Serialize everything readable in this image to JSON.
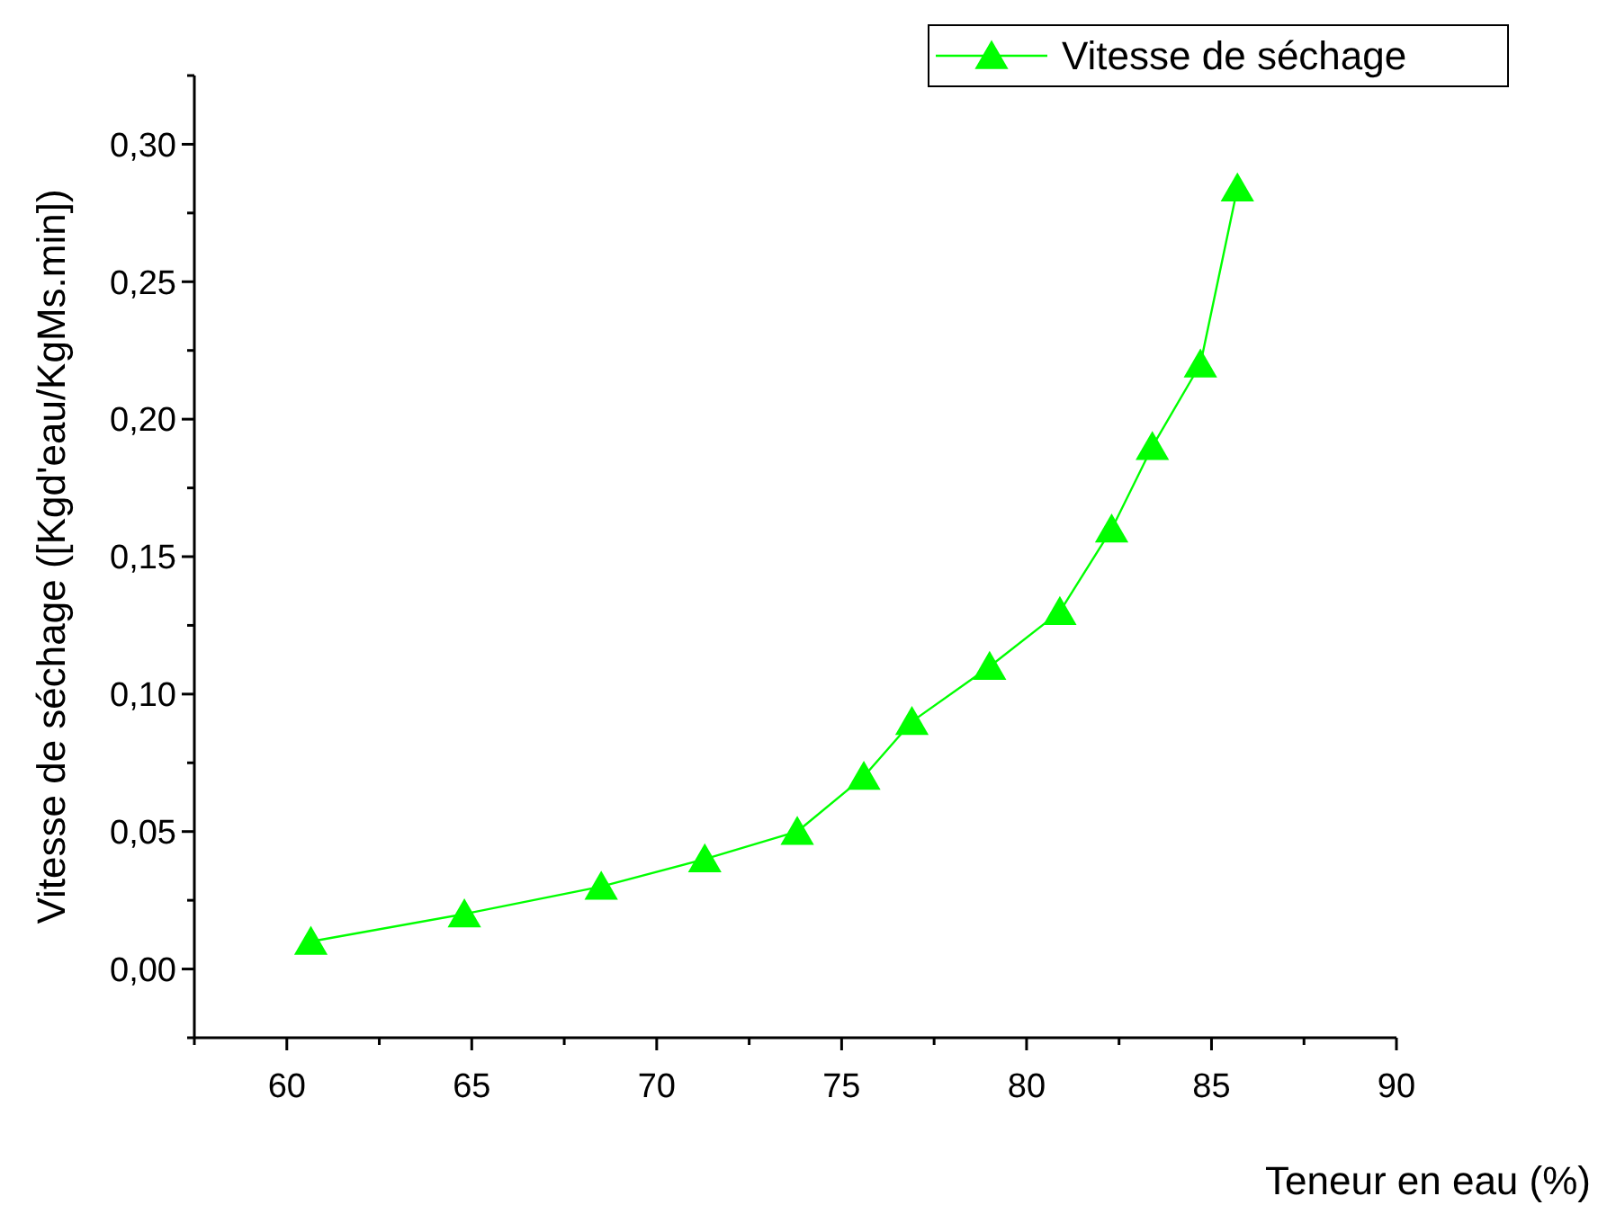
{
  "chart_data": {
    "type": "line",
    "xlabel": "Teneur en eau (%)",
    "ylabel": "Vitesse de séchage ([Kgd'eau/KgMs.min])",
    "x": [
      60.65,
      64.8,
      68.5,
      71.3,
      73.8,
      75.6,
      76.9,
      79.0,
      80.9,
      82.3,
      83.4,
      84.7,
      85.7
    ],
    "series": [
      {
        "name": "Vitesse de séchage",
        "color": "#00ff00",
        "values": [
          0.01,
          0.02,
          0.03,
          0.04,
          0.05,
          0.07,
          0.09,
          0.11,
          0.13,
          0.16,
          0.19,
          0.22,
          0.284
        ]
      }
    ],
    "xlim": [
      57.5,
      90
    ],
    "xticks": [
      {
        "value": 57.5,
        "label": null
      },
      60,
      {
        "value": 62.5,
        "label": null
      },
      65,
      {
        "value": 67.5,
        "label": null
      },
      70,
      {
        "value": 72.5,
        "label": null
      },
      75,
      {
        "value": 77.5,
        "label": null
      },
      80,
      {
        "value": 82.5,
        "label": null
      },
      85,
      {
        "value": 87.5,
        "label": null
      },
      90
    ],
    "ylim": [
      -0.025,
      0.325
    ],
    "yticks": [
      {
        "value": -0.025,
        "label": null
      },
      {
        "value": 0,
        "label": "0,00"
      },
      {
        "value": 0.025,
        "label": null
      },
      {
        "value": 0.05,
        "label": "0,05"
      },
      {
        "value": 0.075,
        "label": null
      },
      {
        "value": 0.1,
        "label": "0,10"
      },
      {
        "value": 0.125,
        "label": null
      },
      {
        "value": 0.15,
        "label": "0,15"
      },
      {
        "value": 0.175,
        "label": null
      },
      {
        "value": 0.2,
        "label": "0,20"
      },
      {
        "value": 0.225,
        "label": null
      },
      {
        "value": 0.25,
        "label": "0,25"
      },
      {
        "value": 0.275,
        "label": null
      },
      {
        "value": 0.3,
        "label": "0,30"
      },
      {
        "value": 0.325,
        "label": null
      }
    ],
    "marker": "triangle",
    "line_style": "solid",
    "legend": "top right",
    "grid": false
  }
}
